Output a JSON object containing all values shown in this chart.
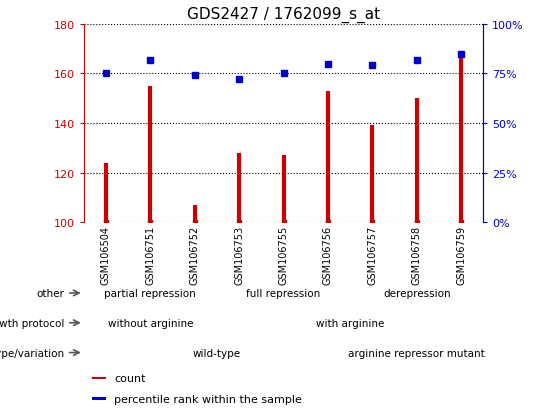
{
  "title": "GDS2427 / 1762099_s_at",
  "samples": [
    "GSM106504",
    "GSM106751",
    "GSM106752",
    "GSM106753",
    "GSM106755",
    "GSM106756",
    "GSM106757",
    "GSM106758",
    "GSM106759"
  ],
  "counts": [
    124,
    155,
    107,
    128,
    127,
    153,
    139,
    150,
    169
  ],
  "percentile_ranks": [
    75,
    82,
    74,
    72,
    75,
    80,
    79,
    82,
    85
  ],
  "ylim_left": [
    100,
    180
  ],
  "ylim_right": [
    0,
    100
  ],
  "yticks_left": [
    100,
    120,
    140,
    160,
    180
  ],
  "yticks_right": [
    0,
    25,
    50,
    75,
    100
  ],
  "bar_color": "#cc0000",
  "dot_color": "#0000cc",
  "annotation_rows": [
    {
      "label": "other",
      "segments": [
        {
          "text": "partial repression",
          "start": 0,
          "end": 3,
          "color": "#aaddaa"
        },
        {
          "text": "full repression",
          "start": 3,
          "end": 6,
          "color": "#55cc55"
        },
        {
          "text": "derepression",
          "start": 6,
          "end": 9,
          "color": "#33bb33"
        }
      ]
    },
    {
      "label": "growth protocol",
      "segments": [
        {
          "text": "without arginine",
          "start": 0,
          "end": 3,
          "color": "#8888cc"
        },
        {
          "text": "with arginine",
          "start": 3,
          "end": 9,
          "color": "#aaaadd"
        }
      ]
    },
    {
      "label": "genotype/variation",
      "segments": [
        {
          "text": "wild-type",
          "start": 0,
          "end": 6,
          "color": "#ffbbbb"
        },
        {
          "text": "arginine repressor mutant",
          "start": 6,
          "end": 9,
          "color": "#cc8888"
        }
      ]
    }
  ],
  "legend_items": [
    {
      "color": "#cc0000",
      "label": "count"
    },
    {
      "color": "#0000cc",
      "label": "percentile rank within the sample"
    }
  ],
  "tick_color_left": "#cc0000",
  "tick_color_right": "#0000cc",
  "xtick_bg": "#dddddd",
  "background_color": "#ffffff"
}
